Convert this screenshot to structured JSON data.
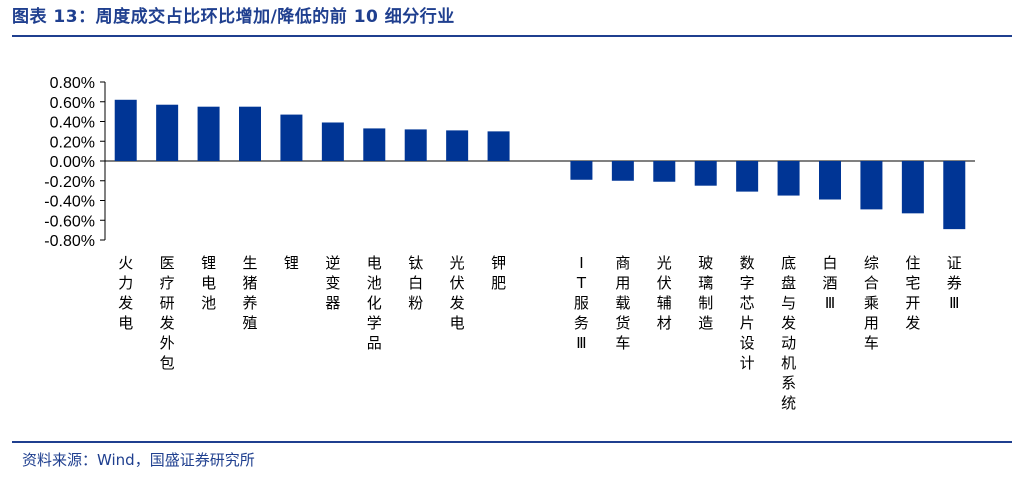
{
  "header": {
    "title": "图表 13：周度成交占比环比增加/降低的前 10 细分行业"
  },
  "footer": {
    "source": "资料来源：Wind，国盛证券研究所"
  },
  "colors": {
    "bar": "#003595",
    "accent": "#1f3f8f"
  },
  "chart_data": {
    "type": "bar",
    "title": "",
    "xlabel": "",
    "ylabel": "",
    "ylim": [
      -0.8,
      0.8
    ],
    "yticks": [
      0.8,
      0.6,
      0.4,
      0.2,
      0.0,
      -0.2,
      -0.4,
      -0.6,
      -0.8
    ],
    "ytick_labels": [
      "0.80%",
      "0.60%",
      "0.40%",
      "0.20%",
      "0.00%",
      "-0.20%",
      "-0.40%",
      "-0.60%",
      "-0.80%"
    ],
    "grid": false,
    "legend": "none",
    "categories": [
      "火力发电",
      "医疗研发外包",
      "锂电池",
      "生猪养殖",
      "锂",
      "逆变器",
      "电池化学品",
      "钛白粉",
      "光伏发电",
      "钾肥",
      "",
      "IT服务Ⅲ",
      "商用载货车",
      "光伏辅材",
      "玻璃制造",
      "数字芯片设计",
      "底盘与发动机系统",
      "白酒Ⅲ",
      "综合乘用车",
      "住宅开发",
      "证券Ⅲ"
    ],
    "values": [
      0.62,
      0.57,
      0.55,
      0.55,
      0.47,
      0.39,
      0.33,
      0.32,
      0.31,
      0.3,
      null,
      -0.19,
      -0.2,
      -0.21,
      -0.25,
      -0.31,
      -0.35,
      -0.39,
      -0.49,
      -0.53,
      -0.69
    ]
  }
}
